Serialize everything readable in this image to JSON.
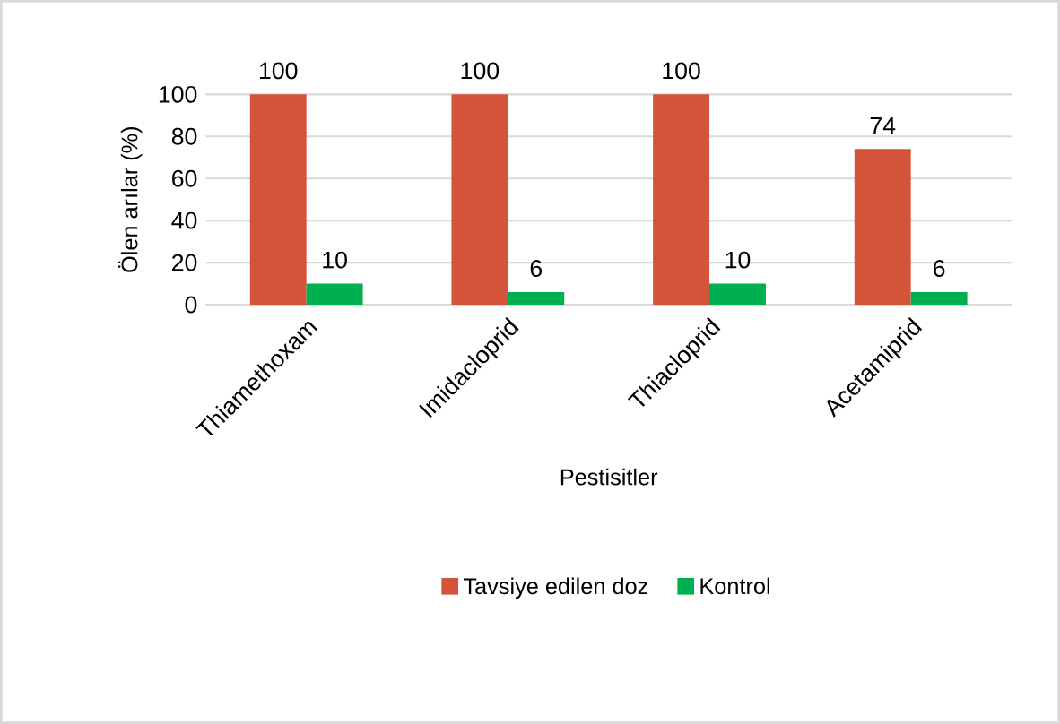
{
  "chart_data": {
    "type": "bar",
    "xlabel": "Pestisitler",
    "ylabel": "Ölen arılar (%)",
    "categories": [
      "Thiamethoxam",
      "Imidacloprid",
      "Thiacloprid",
      "Acetamiprid"
    ],
    "series": [
      {
        "name": "Tavsiye edilen doz",
        "color": "#d4543a",
        "values": [
          100,
          100,
          100,
          74
        ]
      },
      {
        "name": "Kontrol",
        "color": "#00b050",
        "values": [
          10,
          6,
          10,
          6
        ]
      }
    ],
    "ylim": [
      0,
      100
    ],
    "yticks": [
      0,
      20,
      40,
      60,
      80,
      100
    ],
    "grid": "y",
    "legend": "bottom",
    "data_labels": true
  }
}
